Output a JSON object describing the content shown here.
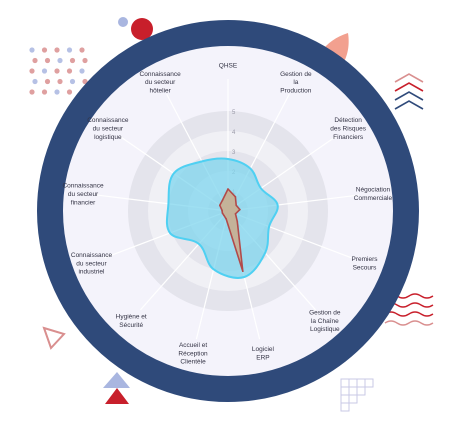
{
  "colors": {
    "ring": "#2f4a7a",
    "inner_face": "#f4f3fb",
    "grid_band_dark": "#e4e4ec",
    "grid_band_light": "#f0f0f5",
    "grid_line": "#ffffff",
    "series_skills_fill": "#7fd6ee",
    "series_skills_stroke": "#4fd0f2",
    "series_interest_fill": "#c9ad8f",
    "series_interest_stroke": "#b24a4a",
    "deco_red": "#c81f2b",
    "deco_blue": "#a9b6e0",
    "deco_salmon": "#f2a08f",
    "deco_navy": "#2f4a7a",
    "deco_rose": "#d98f8f",
    "deco_grid": "#c9c9e6"
  },
  "decorations": {
    "top_left_dots": "dot-grid",
    "top_left_circles": "red-and-blue-circles",
    "top_right_leaf": "salmon-leaf",
    "right_chevrons": "chevron-stack",
    "right_waves": "red-waves",
    "bottom_left_triangles": "triangle-outline-and-red-blue-triangles",
    "bottom_right_grid": "grid-squares"
  },
  "chart_data": {
    "type": "radar",
    "categories": [
      "QHSE",
      "Gestion de\nla\nProduction",
      "Détection\ndes Risques\nFinanciers",
      "Négociation\nCommerciale",
      "Premiers\nSecours",
      "Gestion de\nla Chaîne\nLogistique",
      "Logiciel\nERP",
      "Accueil et\nRéception\nClientèle",
      "Hygiène et\nSécurité",
      "Connaissance\ndu secteur\nindustriel",
      "Connaissance\ndu secteur\nfinancier",
      "Connaissance\ndu secteur\nlogistique",
      "Connaissance\ndu secteur\nhôtelier"
    ],
    "rlim": [
      0,
      5
    ],
    "ticks": [
      "1",
      "2",
      "3",
      "4",
      "5"
    ],
    "grid": true,
    "series": [
      {
        "values": [
          2.6,
          2.4,
          2.0,
          2.5,
          2.2,
          2.8,
          3.4,
          3.0,
          2.2,
          3.1,
          3.0,
          3.3,
          2.8
        ]
      },
      {
        "values": [
          1.1,
          0.8,
          0.5,
          0.6,
          0.4,
          0.7,
          3.1,
          0.4,
          0.3,
          0.3,
          0.3,
          0.5,
          0.6
        ]
      }
    ]
  }
}
